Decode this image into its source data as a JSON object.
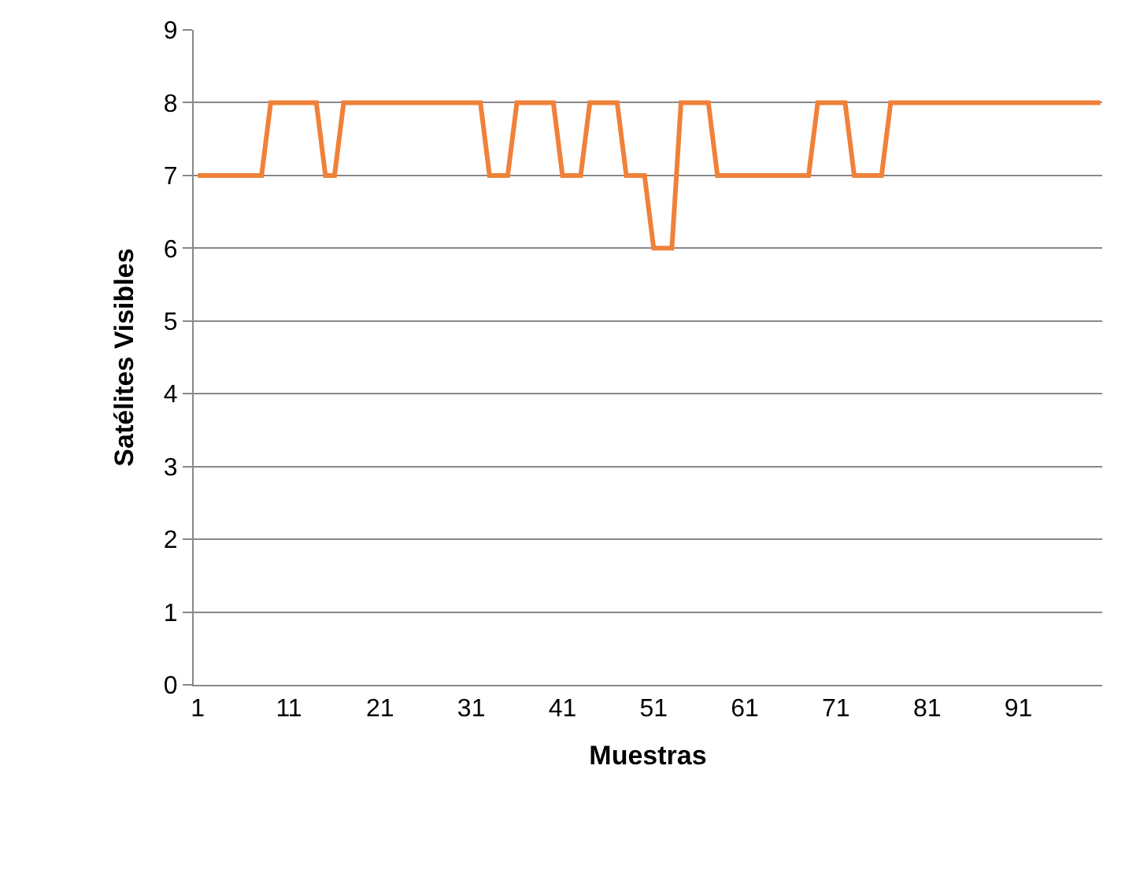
{
  "chart_data": {
    "type": "line",
    "xlabel": "Muestras",
    "ylabel": "Satélites Visibles",
    "categories": [
      "1",
      null,
      null,
      null,
      null,
      null,
      null,
      null,
      null,
      null,
      "11",
      null,
      null,
      null,
      null,
      null,
      null,
      null,
      null,
      null,
      "21",
      null,
      null,
      null,
      null,
      null,
      null,
      null,
      null,
      null,
      "31",
      null,
      null,
      null,
      null,
      null,
      null,
      null,
      null,
      null,
      "41",
      null,
      null,
      null,
      null,
      null,
      null,
      null,
      null,
      null,
      "51",
      null,
      null,
      null,
      null,
      null,
      null,
      null,
      null,
      null,
      "61",
      null,
      null,
      null,
      null,
      null,
      null,
      null,
      null,
      null,
      "71",
      null,
      null,
      null,
      null,
      null,
      null,
      null,
      null,
      null,
      "81",
      null,
      null,
      null,
      null,
      null,
      null,
      null,
      null,
      null,
      "91",
      null,
      null,
      null,
      null,
      null,
      null,
      null,
      null,
      null
    ],
    "series": [
      {
        "color": "#f0813a",
        "values": [
          7,
          7,
          7,
          7,
          7,
          7,
          7,
          7,
          8,
          8,
          8,
          8,
          8,
          8,
          7,
          7,
          8,
          8,
          8,
          8,
          8,
          8,
          8,
          8,
          8,
          8,
          8,
          8,
          8,
          8,
          8,
          8,
          7,
          7,
          7,
          8,
          8,
          8,
          8,
          8,
          7,
          7,
          7,
          8,
          8,
          8,
          8,
          7,
          7,
          7,
          6,
          6,
          6,
          8,
          8,
          8,
          8,
          7,
          7,
          7,
          7,
          7,
          7,
          7,
          7,
          7,
          7,
          7,
          8,
          8,
          8,
          8,
          7,
          7,
          7,
          7,
          8,
          8,
          8,
          8,
          8,
          8,
          8,
          8,
          8,
          8,
          8,
          8,
          8,
          8,
          8,
          8,
          8,
          8,
          8,
          8,
          8,
          8,
          8,
          8
        ]
      }
    ],
    "ylim": [
      0,
      9
    ],
    "yticks": [
      0,
      1,
      2,
      3,
      4,
      5,
      6,
      7,
      8,
      9
    ],
    "grid": "y",
    "marker": "none",
    "line_style": "solid"
  }
}
